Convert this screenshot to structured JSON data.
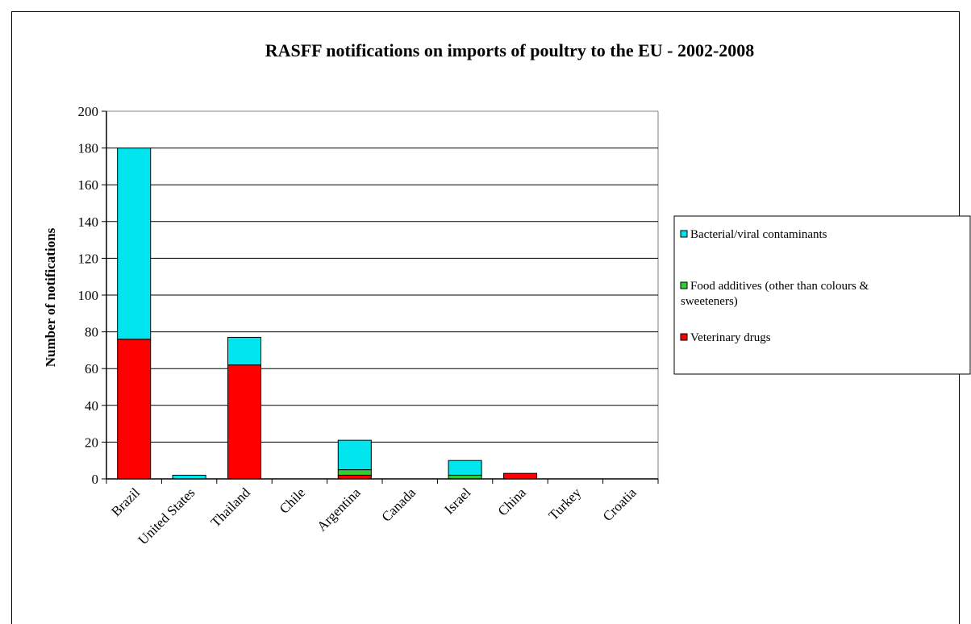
{
  "chart_data": {
    "type": "bar",
    "stacked": true,
    "title": "RASFF notifications on imports of poultry to the EU - 2002-2008",
    "xlabel": "",
    "ylabel": "Number of notifications",
    "ylim": [
      0,
      200
    ],
    "yticks": [
      0,
      20,
      40,
      60,
      80,
      100,
      120,
      140,
      160,
      180,
      200
    ],
    "grid": true,
    "legend_position": "right",
    "categories": [
      "Brazil",
      "United States",
      "Thailand",
      "Chile",
      "Argentina",
      "Canada",
      "Israel",
      "China",
      "Turkey",
      "Croatia"
    ],
    "series": [
      {
        "name": "Veterinary drugs",
        "color": "#ff0000",
        "values": [
          76,
          0,
          62,
          0,
          2,
          0,
          0,
          3,
          0,
          0
        ]
      },
      {
        "name": "Food additives (other than colours & sweeteners)",
        "color": "#33cc33",
        "values": [
          0,
          0,
          0,
          0,
          3,
          0,
          2,
          0,
          0,
          0
        ]
      },
      {
        "name": "Bacterial/viral contaminants",
        "color": "#00e5ee",
        "values": [
          104,
          2,
          15,
          0,
          16,
          0,
          8,
          0,
          0,
          0
        ]
      }
    ],
    "legend_order": [
      "Bacterial/viral contaminants",
      "Food additives (other than colours & sweeteners)",
      "Veterinary drugs"
    ]
  }
}
